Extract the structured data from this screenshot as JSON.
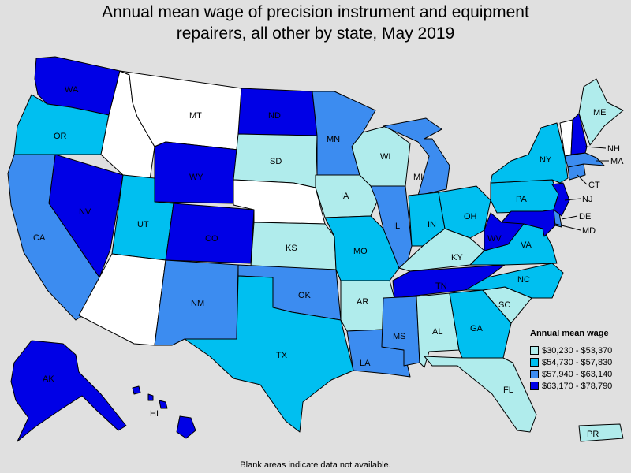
{
  "title_line1": "Annual mean wage of precision instrument and equipment",
  "title_line2": "repairers, all other by state, May 2019",
  "footnote": "Blank areas indicate data not available.",
  "legend": {
    "title": "Annual mean wage",
    "items": [
      {
        "range": "$30,230 - $53,370",
        "color": "#b0ecec"
      },
      {
        "range": "$54,730 - $57,830",
        "color": "#00bff0"
      },
      {
        "range": "$57,940 - $63,140",
        "color": "#3c8cf0"
      },
      {
        "range": "$63,170 - $78,790",
        "color": "#0000e6"
      }
    ]
  },
  "no_data_color": "#ffffff",
  "states": {
    "WA": 4,
    "OR": 2,
    "CA": 3,
    "NV": 4,
    "ID": 0,
    "MT": 0,
    "WY": 4,
    "UT": 2,
    "AZ": 0,
    "CO": 4,
    "NM": 3,
    "ND": 4,
    "SD": 1,
    "NE": 0,
    "KS": 1,
    "OK": 3,
    "TX": 2,
    "MN": 3,
    "IA": 1,
    "MO": 2,
    "AR": 1,
    "LA": 3,
    "WI": 1,
    "IL": 3,
    "MS": 3,
    "MI": 3,
    "IN": 2,
    "KY": 1,
    "TN": 4,
    "AL": 1,
    "OH": 2,
    "WV": 4,
    "VA": 2,
    "NC": 2,
    "SC": 1,
    "GA": 2,
    "FL": 1,
    "PA": 2,
    "NY": 2,
    "VT": 0,
    "NH": 4,
    "ME": 1,
    "MA": 3,
    "CT": 3,
    "NJ": 4,
    "DE": 3,
    "MD": 4,
    "AK": 4,
    "HI": 4,
    "PR": 1
  },
  "state_labels": [
    "WA",
    "OR",
    "CA",
    "NV",
    "MT",
    "WY",
    "UT",
    "CO",
    "NM",
    "ND",
    "SD",
    "KS",
    "OK",
    "TX",
    "MN",
    "IA",
    "MO",
    "AR",
    "LA",
    "WI",
    "IL",
    "MS",
    "MI",
    "IN",
    "KY",
    "TN",
    "AL",
    "OH",
    "WV",
    "VA",
    "NC",
    "SC",
    "GA",
    "FL",
    "PA",
    "NY",
    "NH",
    "ME",
    "MA",
    "CT",
    "NJ",
    "DE",
    "MD",
    "AK",
    "HI",
    "PR"
  ]
}
